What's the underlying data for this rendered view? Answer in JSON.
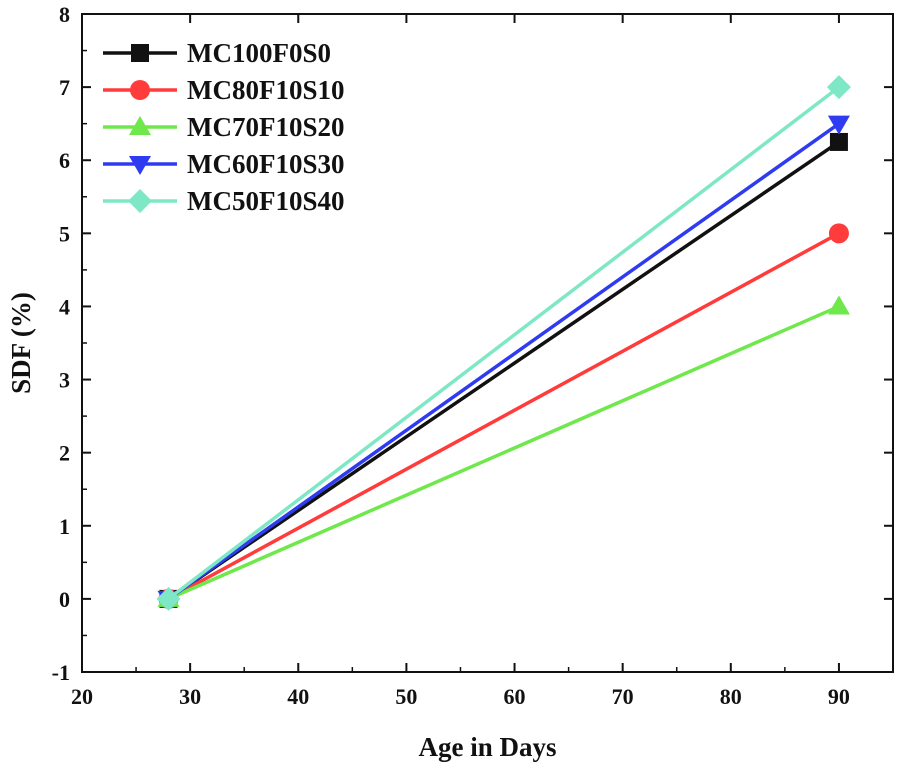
{
  "chart_data": {
    "type": "line",
    "title": "",
    "xlabel": "Age in Days",
    "ylabel": "SDF (%)",
    "xlim": [
      20,
      95
    ],
    "ylim": [
      -1,
      8
    ],
    "xticks": [
      20,
      30,
      40,
      50,
      60,
      70,
      80,
      90
    ],
    "yticks": [
      -1,
      0,
      1,
      2,
      3,
      4,
      5,
      6,
      7,
      8
    ],
    "x": [
      28,
      90
    ],
    "grid": false,
    "legend_position": "top-left",
    "series": [
      {
        "name": "MC100F0S0",
        "values": [
          0,
          6.25
        ],
        "color": "#111111",
        "marker": "square"
      },
      {
        "name": "MC80F10S10",
        "values": [
          0,
          5.0
        ],
        "color": "#ff3b3b",
        "marker": "circle"
      },
      {
        "name": "MC70F10S20",
        "values": [
          0,
          4.0
        ],
        "color": "#6ee84a",
        "marker": "triangle-up"
      },
      {
        "name": "MC60F10S30",
        "values": [
          0,
          6.5
        ],
        "color": "#2f3bf0",
        "marker": "triangle-down"
      },
      {
        "name": "MC50F10S40",
        "values": [
          0,
          7.0
        ],
        "color": "#7ee8c6",
        "marker": "diamond"
      }
    ]
  }
}
